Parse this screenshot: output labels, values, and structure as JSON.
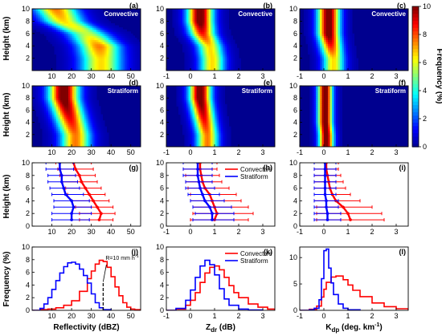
{
  "figure": {
    "ylabel": "Height (km)",
    "ylabel_freq": "Frequency (%)",
    "colorbar": {
      "label": "Frequency (%)",
      "ticks": [
        "0",
        "2",
        "4",
        "6",
        "8",
        "10"
      ],
      "range": [
        0,
        10
      ],
      "colors": [
        "#00008f",
        "#0000ff",
        "#0080ff",
        "#00ffff",
        "#80ff80",
        "#ffff00",
        "#ff8000",
        "#ff0000",
        "#800000"
      ]
    },
    "colors": {
      "convective": "#ff0000",
      "stratiform": "#0000ff",
      "marker": "#000000"
    }
  },
  "chart_data": [
    {
      "id": "a",
      "panel_label": "(a)",
      "type": "heatmap",
      "regime": "Convective",
      "xlim": [
        0,
        55
      ],
      "xticks": [
        "10",
        "20",
        "30",
        "40",
        "50"
      ],
      "ylim": [
        0,
        10
      ],
      "yticks": [
        "2",
        "4",
        "6",
        "8",
        "10"
      ],
      "ylabel": "Height (km)",
      "ridge": [
        [
          2,
          35
        ],
        [
          4,
          34
        ],
        [
          6,
          28
        ],
        [
          8,
          16
        ],
        [
          10,
          12
        ]
      ],
      "ridge_width": 7,
      "ridge_peak": [
        [
          2,
          6
        ],
        [
          4,
          7
        ],
        [
          6,
          5
        ],
        [
          8,
          6
        ],
        [
          10,
          7
        ]
      ]
    },
    {
      "id": "b",
      "panel_label": "(b)",
      "type": "heatmap",
      "regime": "Convective",
      "xlim": [
        -1,
        3.5
      ],
      "xticks": [
        "-1",
        "0",
        "1",
        "2",
        "3"
      ],
      "ylim": [
        0,
        10
      ],
      "yticks": [
        "2",
        "4",
        "6",
        "8",
        "10"
      ],
      "ridge": [
        [
          2,
          0.9
        ],
        [
          4,
          0.8
        ],
        [
          6,
          0.5
        ],
        [
          8,
          0.4
        ],
        [
          10,
          0.4
        ]
      ],
      "ridge_width": 0.35,
      "ridge_peak": [
        [
          2,
          6
        ],
        [
          4,
          6
        ],
        [
          6,
          8
        ],
        [
          8,
          10
        ],
        [
          10,
          10
        ]
      ]
    },
    {
      "id": "c",
      "panel_label": "(c)",
      "type": "heatmap",
      "regime": "Convective",
      "xlim": [
        -1,
        3.5
      ],
      "xticks": [
        "-1",
        "0",
        "1",
        "2",
        "3"
      ],
      "ylim": [
        0,
        10
      ],
      "yticks": [
        "2",
        "4",
        "6",
        "8",
        "10"
      ],
      "ridge": [
        [
          2,
          0.4
        ],
        [
          4,
          0.3
        ],
        [
          6,
          0.2
        ],
        [
          8,
          0.2
        ],
        [
          10,
          0.2
        ]
      ],
      "ridge_width": 0.3,
      "ridge_peak": [
        [
          2,
          6
        ],
        [
          4,
          8
        ],
        [
          6,
          10
        ],
        [
          8,
          10
        ],
        [
          10,
          10
        ]
      ]
    },
    {
      "id": "d",
      "panel_label": "(d)",
      "type": "heatmap",
      "regime": "Stratiform",
      "xlim": [
        0,
        55
      ],
      "xticks": [
        "10",
        "20",
        "30",
        "40",
        "50"
      ],
      "ylim": [
        0,
        10
      ],
      "yticks": [
        "2",
        "4",
        "6",
        "8",
        "10"
      ],
      "ylabel": "Height (km)",
      "ridge": [
        [
          2,
          22
        ],
        [
          4,
          20
        ],
        [
          6,
          18
        ],
        [
          8,
          16
        ],
        [
          10,
          16
        ]
      ],
      "ridge_width": 5,
      "ridge_peak": [
        [
          2,
          7
        ],
        [
          4,
          8
        ],
        [
          6,
          9
        ],
        [
          8,
          10
        ],
        [
          10,
          10
        ]
      ]
    },
    {
      "id": "e",
      "panel_label": "(e)",
      "type": "heatmap",
      "regime": "Stratiform",
      "xlim": [
        -1,
        3.5
      ],
      "xticks": [
        "-1",
        "0",
        "1",
        "2",
        "3"
      ],
      "ylim": [
        0,
        10
      ],
      "yticks": [
        "2",
        "4",
        "6",
        "8",
        "10"
      ],
      "ridge": [
        [
          2,
          0.7
        ],
        [
          4,
          0.6
        ],
        [
          6,
          0.5
        ],
        [
          8,
          0.4
        ],
        [
          10,
          0.4
        ]
      ],
      "ridge_width": 0.3,
      "ridge_peak": [
        [
          2,
          7
        ],
        [
          4,
          8
        ],
        [
          6,
          9
        ],
        [
          8,
          10
        ],
        [
          10,
          10
        ]
      ]
    },
    {
      "id": "f",
      "panel_label": "(f)",
      "type": "heatmap",
      "regime": "Stratiform",
      "xlim": [
        -1,
        3.5
      ],
      "xticks": [
        "-1",
        "0",
        "1",
        "2",
        "3"
      ],
      "ylim": [
        0,
        10
      ],
      "yticks": [
        "2",
        "4",
        "6",
        "8",
        "10"
      ],
      "ridge": [
        [
          2,
          0.1
        ],
        [
          4,
          0.05
        ],
        [
          6,
          0.05
        ],
        [
          8,
          0.05
        ],
        [
          10,
          0.05
        ]
      ],
      "ridge_width": 0.2,
      "ridge_peak": [
        [
          2,
          10
        ],
        [
          4,
          10
        ],
        [
          6,
          10
        ],
        [
          8,
          10
        ],
        [
          10,
          10
        ]
      ]
    },
    {
      "id": "g",
      "panel_label": "(g)",
      "type": "line",
      "xlim": [
        0,
        55
      ],
      "xticks": [
        "10",
        "20",
        "30",
        "40",
        "50"
      ],
      "ylim": [
        0,
        10
      ],
      "yticks": [
        "0",
        "2",
        "4",
        "6",
        "8",
        "10"
      ],
      "ylabel": "Height (km)",
      "series": [
        {
          "regime": "convective",
          "heights": [
            1,
            2,
            3,
            4,
            5,
            6,
            7,
            8,
            9,
            10
          ],
          "mean": [
            34,
            35,
            33,
            31,
            29,
            27,
            25,
            24,
            22,
            21
          ],
          "lo": [
            24,
            24,
            22,
            20,
            18,
            17,
            15,
            14,
            13,
            12
          ],
          "hi": [
            41,
            42,
            41,
            39,
            37,
            35,
            33,
            32,
            31,
            30
          ]
        },
        {
          "regime": "stratiform",
          "heights": [
            1,
            2,
            3,
            4,
            5,
            6,
            7,
            8,
            9,
            10
          ],
          "mean": [
            20,
            20,
            21,
            20,
            17,
            16,
            15,
            15,
            14,
            14
          ],
          "lo": [
            10,
            10,
            11,
            11,
            10,
            9,
            8,
            8,
            7,
            7
          ],
          "hi": [
            29,
            30,
            30,
            29,
            26,
            24,
            23,
            22,
            21,
            21
          ]
        }
      ]
    },
    {
      "id": "h",
      "panel_label": "(h)",
      "type": "line",
      "xlim": [
        -1,
        3.5
      ],
      "xticks": [
        "-1",
        "0",
        "1",
        "2",
        "3"
      ],
      "ylim": [
        0,
        10
      ],
      "yticks": [
        "0",
        "2",
        "4",
        "6",
        "8",
        "10"
      ],
      "legend": {
        "entries": [
          "Convective",
          "Stratiform"
        ],
        "placement": "top-right"
      },
      "series": [
        {
          "regime": "convective",
          "heights": [
            1,
            2,
            3,
            4,
            5,
            6,
            7,
            8,
            9,
            10
          ],
          "mean": [
            1.0,
            1.1,
            1.0,
            0.9,
            0.8,
            0.6,
            0.5,
            0.45,
            0.4,
            0.4
          ],
          "lo": [
            0.0,
            0.1,
            0.1,
            0.0,
            0.0,
            -0.1,
            -0.2,
            -0.2,
            -0.3,
            -0.3
          ],
          "hi": [
            2.4,
            2.6,
            2.4,
            2.1,
            1.9,
            1.6,
            1.3,
            1.2,
            1.1,
            1.1
          ]
        },
        {
          "regime": "stratiform",
          "heights": [
            1,
            2,
            3,
            4,
            5,
            6,
            7,
            8,
            9,
            10
          ],
          "mean": [
            0.9,
            0.9,
            0.8,
            0.6,
            0.5,
            0.4,
            0.35,
            0.3,
            0.3,
            0.3
          ],
          "lo": [
            0.1,
            0.2,
            0.1,
            0.0,
            -0.1,
            -0.2,
            -0.2,
            -0.3,
            -0.3,
            -0.3
          ],
          "hi": [
            1.8,
            1.8,
            1.7,
            1.4,
            1.2,
            1.0,
            0.9,
            0.9,
            0.9,
            0.9
          ]
        }
      ]
    },
    {
      "id": "i",
      "panel_label": "(i)",
      "type": "line",
      "xlim": [
        -1,
        3.5
      ],
      "xticks": [
        "-1",
        "0",
        "1",
        "2",
        "3"
      ],
      "ylim": [
        0,
        10
      ],
      "yticks": [
        "0",
        "2",
        "4",
        "6",
        "8",
        "10"
      ],
      "series": [
        {
          "regime": "convective",
          "heights": [
            1,
            2,
            3,
            4,
            5,
            6,
            7,
            8,
            9,
            10
          ],
          "mean": [
            1.1,
            1.0,
            0.8,
            0.5,
            0.35,
            0.25,
            0.2,
            0.15,
            0.1,
            0.1
          ],
          "lo": [
            -0.3,
            -0.3,
            -0.3,
            -0.4,
            -0.4,
            -0.4,
            -0.4,
            -0.4,
            -0.4,
            -0.4
          ],
          "hi": [
            2.5,
            2.4,
            2.0,
            1.5,
            1.1,
            0.9,
            0.8,
            0.7,
            0.6,
            0.6
          ]
        },
        {
          "regime": "stratiform",
          "heights": [
            1,
            2,
            3,
            4,
            5,
            6,
            7,
            8,
            9,
            10
          ],
          "mean": [
            0.15,
            0.15,
            0.1,
            0.1,
            0.05,
            0.05,
            0.05,
            0.05,
            0.05,
            0.05
          ],
          "lo": [
            -0.4,
            -0.4,
            -0.4,
            -0.4,
            -0.4,
            -0.4,
            -0.4,
            -0.4,
            -0.4,
            -0.4
          ],
          "hi": [
            0.7,
            0.7,
            0.6,
            0.6,
            0.5,
            0.5,
            0.5,
            0.5,
            0.5,
            0.5
          ]
        }
      ]
    },
    {
      "id": "j",
      "panel_label": "(j)",
      "type": "line",
      "xlabel": "Reflectivity (dBZ)",
      "ylabel": "Frequency (%)",
      "xlim": [
        0,
        55
      ],
      "xticks": [
        "10",
        "20",
        "30",
        "40",
        "50"
      ],
      "ylim": [
        0,
        10
      ],
      "yticks": [
        "0",
        "2",
        "4",
        "6",
        "8",
        "10"
      ],
      "annotation": {
        "text": "R=10 mm h",
        "superscript": "-1",
        "x": 36
      },
      "series": [
        {
          "regime": "convective",
          "x": [
            0,
            4,
            8,
            12,
            16,
            20,
            24,
            28,
            30,
            32,
            34,
            36,
            38,
            40,
            42,
            44,
            46,
            48,
            50,
            52,
            55
          ],
          "y": [
            0,
            0.1,
            0.2,
            0.4,
            0.8,
            1.5,
            3.0,
            5.0,
            6.2,
            7.3,
            7.9,
            7.7,
            6.8,
            5.3,
            3.7,
            2.3,
            1.2,
            0.5,
            0.2,
            0.1,
            0
          ]
        },
        {
          "regime": "stratiform",
          "x": [
            0,
            4,
            6,
            8,
            10,
            12,
            14,
            16,
            18,
            20,
            22,
            24,
            26,
            28,
            30,
            32,
            34,
            36,
            40
          ],
          "y": [
            0,
            0.3,
            1.0,
            2.0,
            3.3,
            4.7,
            5.9,
            6.9,
            7.5,
            7.6,
            7.3,
            6.5,
            5.5,
            4.3,
            2.6,
            1.2,
            0.4,
            0.1,
            0
          ]
        }
      ]
    },
    {
      "id": "k",
      "panel_label": "(k)",
      "type": "line",
      "xlabel": "Z",
      "xlabel_sub": "dr",
      "xlabel_suffix": " (dB)",
      "xlim": [
        -1,
        3.5
      ],
      "xticks": [
        "-1",
        "0",
        "1",
        "2",
        "3"
      ],
      "ylim": [
        0,
        10
      ],
      "yticks": [
        "0",
        "2",
        "4",
        "6",
        "8",
        "10"
      ],
      "legend": {
        "entries": [
          "Convective",
          "Stratiform"
        ],
        "placement": "top-right"
      },
      "series": [
        {
          "regime": "convective",
          "x": [
            -1,
            -0.6,
            -0.2,
            0,
            0.2,
            0.4,
            0.6,
            0.8,
            1.0,
            1.2,
            1.4,
            1.6,
            1.8,
            2.0,
            2.4,
            2.8,
            3.2,
            3.5
          ],
          "y": [
            0,
            0.2,
            0.8,
            1.6,
            2.8,
            4.4,
            5.9,
            6.8,
            7.0,
            6.4,
            5.2,
            3.9,
            2.8,
            2.0,
            1.0,
            0.5,
            0.2,
            0
          ]
        },
        {
          "regime": "stratiform",
          "x": [
            -1,
            -0.6,
            -0.2,
            0,
            0.2,
            0.4,
            0.6,
            0.8,
            1.0,
            1.2,
            1.4,
            1.6,
            2.0,
            2.4,
            3.0
          ],
          "y": [
            0,
            0.3,
            1.6,
            3.2,
            5.2,
            7.0,
            7.9,
            7.2,
            5.6,
            3.4,
            1.8,
            0.8,
            0.2,
            0.05,
            0
          ]
        }
      ]
    },
    {
      "id": "l",
      "panel_label": "(l)",
      "type": "line",
      "xlabel": "K",
      "xlabel_sub": "dp",
      "xlabel_suffix": " (deg. km",
      "xlabel_sup": "-1",
      "xlabel_end": ")",
      "xlim": [
        -1,
        3.5
      ],
      "xticks": [
        "-1",
        "0",
        "1",
        "2",
        "3"
      ],
      "ylim": [
        0,
        12
      ],
      "yticks": [
        "0",
        "5",
        "10"
      ],
      "series": [
        {
          "regime": "convective",
          "x": [
            -1,
            -0.6,
            -0.3,
            -0.1,
            0,
            0.1,
            0.3,
            0.5,
            0.8,
            1.0,
            1.2,
            1.5,
            2.0,
            2.5,
            3.0,
            3.5
          ],
          "y": [
            0,
            0.2,
            0.8,
            2.5,
            4.0,
            5.3,
            6.3,
            6.5,
            5.8,
            4.8,
            3.8,
            2.6,
            1.4,
            0.7,
            0.3,
            0.1
          ]
        },
        {
          "regime": "stratiform",
          "x": [
            -1,
            -0.6,
            -0.4,
            -0.2,
            -0.1,
            0,
            0.1,
            0.2,
            0.3,
            0.4,
            0.6,
            0.8,
            1.0,
            1.5
          ],
          "y": [
            0,
            0.1,
            0.4,
            2.0,
            6.0,
            11.3,
            11.6,
            8.0,
            5.2,
            3.0,
            1.2,
            0.4,
            0.1,
            0
          ]
        }
      ]
    }
  ],
  "legend_labels": {
    "convective": "Convective",
    "stratiform": "Stratiform"
  }
}
